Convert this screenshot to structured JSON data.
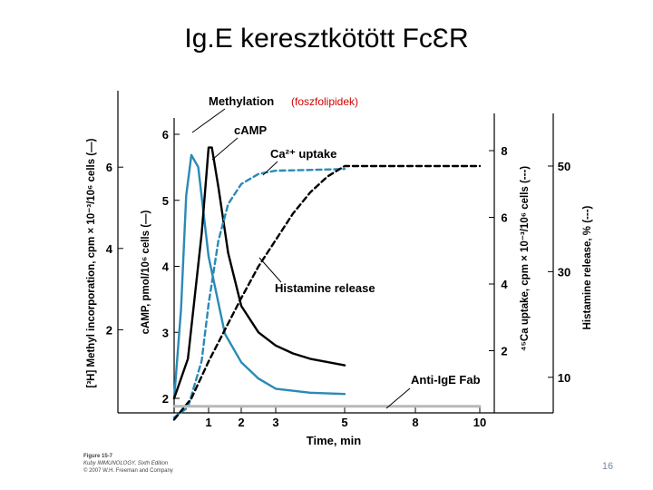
{
  "slide": {
    "title": "Ig.E keresztkötött FcƐR",
    "annotation": "(foszfolipidek)",
    "page_number": "16",
    "credit": [
      "Figure 15-7",
      "Kuby IMMUNOLOGY, Sixth Edition",
      "© 2007 W.H. Freeman and Company"
    ]
  },
  "colors": {
    "blue": "#2a8ab5",
    "black": "#000000",
    "red": "#d00000",
    "baseline": "#b8b8b8"
  },
  "chart_data": {
    "type": "line",
    "xlabel": "Time, min",
    "x_ticks": [
      "1",
      "2",
      "3",
      "5",
      "8",
      "10"
    ],
    "axes": {
      "outer_left": {
        "label": "[³H] Methyl incorporation, cpm × 10⁻³/10⁶ cells (—)",
        "ticks": [
          "2",
          "4",
          "6"
        ]
      },
      "inner_left": {
        "label": "cAMP, pmol/10⁶ cells (—)",
        "ticks": [
          "2",
          "3",
          "4",
          "5",
          "6"
        ]
      },
      "inner_right": {
        "label": "⁴⁵Ca uptake, cpm × 10⁻³/10⁶ cells (---)",
        "ticks": [
          "2",
          "4",
          "6",
          "8"
        ]
      },
      "outer_right": {
        "label": "Histamine release, % (---)",
        "ticks": [
          "10",
          "30",
          "50"
        ]
      }
    },
    "annotations": [
      "Methylation",
      "cAMP",
      "Ca²⁺ uptake",
      "Histamine release",
      "Anti-IgE Fab"
    ],
    "series": [
      {
        "name": "Methylation",
        "color": "blue",
        "style": "solid",
        "axis": "outer_left",
        "x": [
          0,
          0.2,
          0.35,
          0.5,
          0.7,
          1.0,
          1.5,
          2.0,
          2.5,
          3.0,
          4.0,
          5.0
        ],
        "y": [
          0.3,
          2.5,
          5.3,
          6.3,
          6.0,
          3.8,
          1.9,
          1.2,
          0.8,
          0.55,
          0.45,
          0.42
        ]
      },
      {
        "name": "cAMP",
        "color": "black",
        "style": "solid",
        "axis": "inner_left",
        "x": [
          0,
          0.4,
          0.8,
          1.0,
          1.1,
          1.3,
          1.6,
          2.0,
          2.5,
          3.0,
          3.5,
          4.0,
          5.0
        ],
        "y": [
          2.0,
          2.6,
          4.5,
          5.8,
          5.8,
          5.2,
          4.2,
          3.4,
          3.0,
          2.8,
          2.68,
          2.6,
          2.5
        ]
      },
      {
        "name": "Ca²⁺ uptake",
        "color": "blue",
        "style": "dashed",
        "axis": "inner_right",
        "x": [
          0,
          0.4,
          0.8,
          1.0,
          1.3,
          1.6,
          2.0,
          2.5,
          3.0,
          4.0,
          5.0
        ],
        "y": [
          0,
          0.3,
          1.7,
          3.4,
          5.3,
          6.4,
          7.0,
          7.3,
          7.4,
          7.42,
          7.45
        ]
      },
      {
        "name": "Histamine release",
        "color": "black",
        "style": "dashed",
        "axis": "outer_right",
        "x": [
          0,
          0.5,
          1.0,
          1.5,
          2.0,
          2.5,
          3.0,
          3.5,
          4.0,
          4.5,
          5.0,
          6.0,
          8.0,
          10.0
        ],
        "y": [
          2,
          6,
          13,
          19,
          25,
          31,
          36,
          41,
          45,
          48,
          50,
          50,
          50,
          50
        ]
      },
      {
        "name": "Anti-IgE Fab",
        "color": "baseline",
        "style": "solid",
        "axis": "inner_left",
        "x": [
          0,
          10
        ],
        "y": [
          1.88,
          1.88
        ]
      }
    ]
  }
}
